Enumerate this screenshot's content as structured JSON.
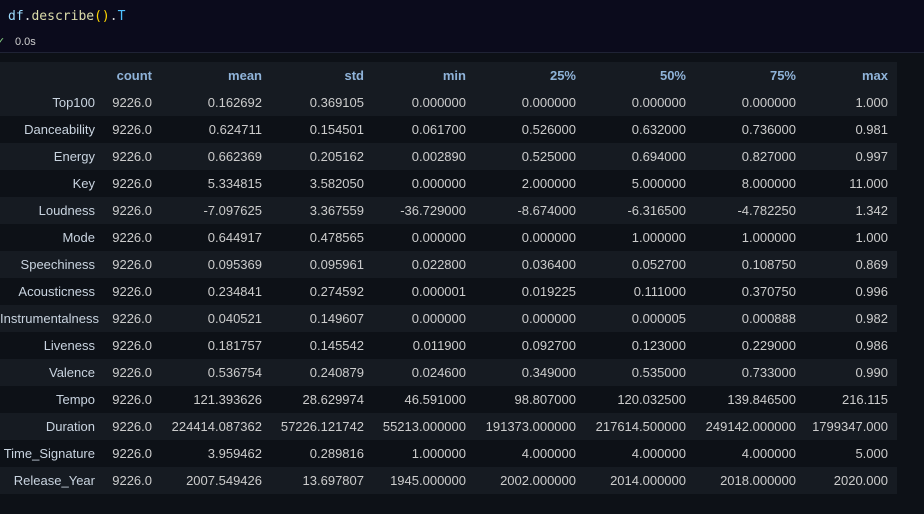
{
  "cell": {
    "code": {
      "var": "df",
      "dot1": ".",
      "fn": "describe",
      "parens": "()",
      "dot2": ".",
      "attr": "T"
    },
    "exec_time": "0.0s"
  },
  "table": {
    "columns": [
      "count",
      "mean",
      "std",
      "min",
      "25%",
      "50%",
      "75%",
      "max"
    ],
    "rows": [
      {
        "label": "Top100",
        "values": [
          "9226.0",
          "0.162692",
          "0.369105",
          "0.000000",
          "0.000000",
          "0.000000",
          "0.000000",
          "1.000"
        ]
      },
      {
        "label": "Danceability",
        "values": [
          "9226.0",
          "0.624711",
          "0.154501",
          "0.061700",
          "0.526000",
          "0.632000",
          "0.736000",
          "0.981"
        ]
      },
      {
        "label": "Energy",
        "values": [
          "9226.0",
          "0.662369",
          "0.205162",
          "0.002890",
          "0.525000",
          "0.694000",
          "0.827000",
          "0.997"
        ]
      },
      {
        "label": "Key",
        "values": [
          "9226.0",
          "5.334815",
          "3.582050",
          "0.000000",
          "2.000000",
          "5.000000",
          "8.000000",
          "11.000"
        ]
      },
      {
        "label": "Loudness",
        "values": [
          "9226.0",
          "-7.097625",
          "3.367559",
          "-36.729000",
          "-8.674000",
          "-6.316500",
          "-4.782250",
          "1.342"
        ]
      },
      {
        "label": "Mode",
        "values": [
          "9226.0",
          "0.644917",
          "0.478565",
          "0.000000",
          "0.000000",
          "1.000000",
          "1.000000",
          "1.000"
        ]
      },
      {
        "label": "Speechiness",
        "values": [
          "9226.0",
          "0.095369",
          "0.095961",
          "0.022800",
          "0.036400",
          "0.052700",
          "0.108750",
          "0.869"
        ]
      },
      {
        "label": "Acousticness",
        "values": [
          "9226.0",
          "0.234841",
          "0.274592",
          "0.000001",
          "0.019225",
          "0.111000",
          "0.370750",
          "0.996"
        ]
      },
      {
        "label": "Instrumentalness",
        "values": [
          "9226.0",
          "0.040521",
          "0.149607",
          "0.000000",
          "0.000000",
          "0.000005",
          "0.000888",
          "0.982"
        ]
      },
      {
        "label": "Liveness",
        "values": [
          "9226.0",
          "0.181757",
          "0.145542",
          "0.011900",
          "0.092700",
          "0.123000",
          "0.229000",
          "0.986"
        ]
      },
      {
        "label": "Valence",
        "values": [
          "9226.0",
          "0.536754",
          "0.240879",
          "0.024600",
          "0.349000",
          "0.535000",
          "0.733000",
          "0.990"
        ]
      },
      {
        "label": "Tempo",
        "values": [
          "9226.0",
          "121.393626",
          "28.629974",
          "46.591000",
          "98.807000",
          "120.032500",
          "139.846500",
          "216.115"
        ]
      },
      {
        "label": "Duration",
        "values": [
          "9226.0",
          "224414.087362",
          "57226.121742",
          "55213.000000",
          "191373.000000",
          "217614.500000",
          "249142.000000",
          "1799347.000"
        ]
      },
      {
        "label": "Time_Signature",
        "values": [
          "9226.0",
          "3.959462",
          "0.289816",
          "1.000000",
          "4.000000",
          "4.000000",
          "4.000000",
          "5.000"
        ]
      },
      {
        "label": "Release_Year",
        "values": [
          "9226.0",
          "2007.549426",
          "13.697807",
          "1945.000000",
          "2002.000000",
          "2014.000000",
          "2018.000000",
          "2020.000"
        ]
      }
    ]
  },
  "icons": {
    "status": "check-icon"
  },
  "colors": {
    "background": "#0d1117",
    "header_text": "#8fb3d9",
    "cell_text": "#cccccc"
  }
}
